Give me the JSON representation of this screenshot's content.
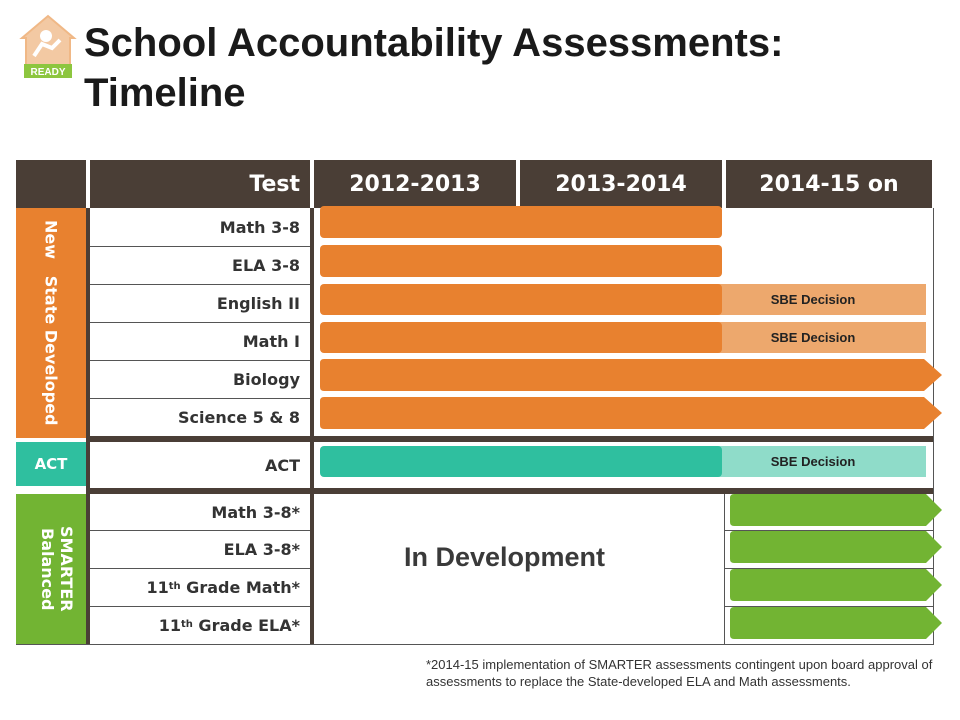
{
  "title": "School Accountability Assessments: Timeline",
  "logo": {
    "text": "READY"
  },
  "table": {
    "headers": [
      "Test",
      "2012-2013",
      "2013-2014",
      "2014-15 on"
    ],
    "groups": [
      {
        "label": "New   State Developed",
        "color": "#e8812f"
      },
      {
        "label": "ACT",
        "color": "#2fbf9f"
      },
      {
        "label": "SMARTER Balanced",
        "color": "#72b433"
      }
    ],
    "rows": [
      {
        "test": "Math 3-8"
      },
      {
        "test": "ELA 3-8"
      },
      {
        "test": "English II",
        "decision": "SBE Decision"
      },
      {
        "test": "Math I",
        "decision": "SBE Decision"
      },
      {
        "test": "Biology"
      },
      {
        "test": "Science 5 & 8"
      },
      {
        "test": "ACT",
        "decision": "SBE Decision"
      },
      {
        "test": "Math 3-8*"
      },
      {
        "test": "ELA 3-8*"
      },
      {
        "test_pre": "11",
        "test_sup": "th",
        "test_post": " Grade Math*"
      },
      {
        "test_pre": "11",
        "test_sup": "th",
        "test_post": " Grade ELA*"
      }
    ],
    "in_development": "In Development"
  },
  "colors": {
    "header_bg": "#4a3e36",
    "state_bar": "#e8812f",
    "state_decision": "#eda86d",
    "act_bar": "#2fbf9f",
    "act_decision": "#8fdcc9",
    "smarter_bar": "#72b433"
  },
  "footnote": "*2014-15 implementation of SMARTER assessments contingent upon board approval of assessments to replace the State-developed ELA and Math assessments."
}
